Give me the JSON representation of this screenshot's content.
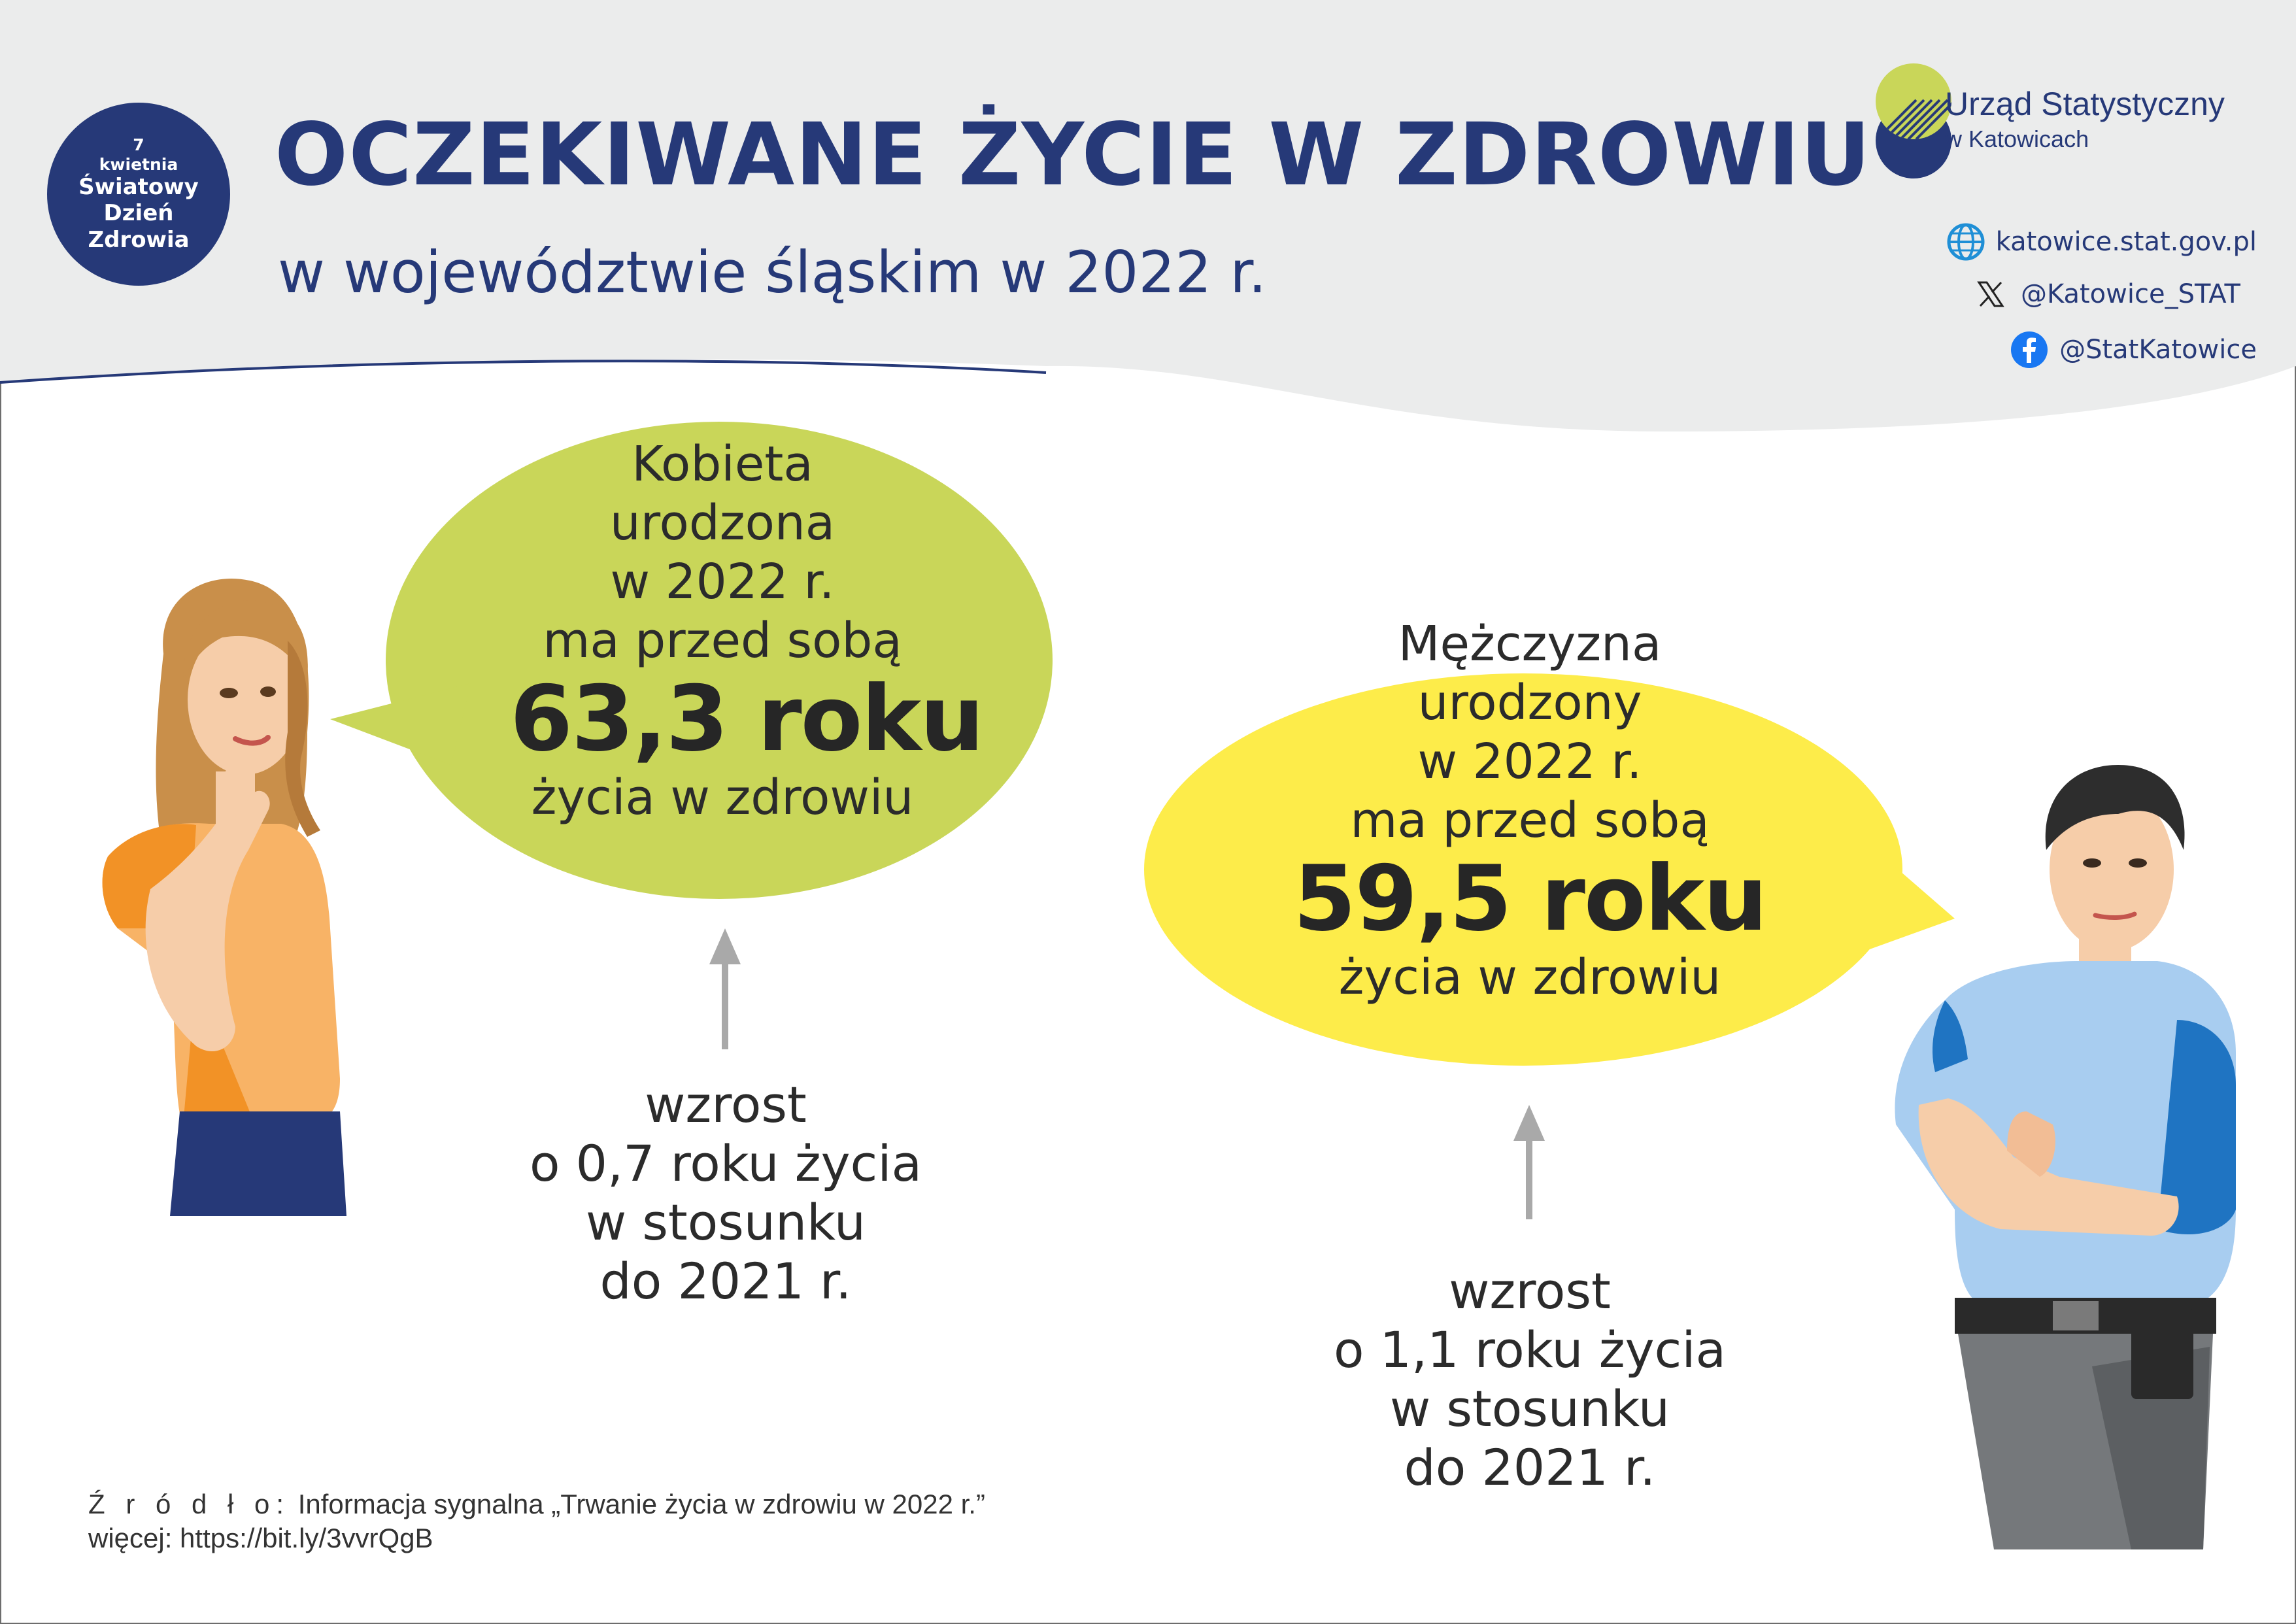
{
  "badge": {
    "line1": "7",
    "line2": "kwietnia",
    "line3": "Światowy",
    "line4": "Dzień",
    "line5": "Zdrowia"
  },
  "header": {
    "title": "OCZEKIWANE ŻYCIE W ZDROWIU",
    "subtitle": "w województwie śląskim w 2022 r."
  },
  "logo": {
    "name_line1": "Urząd Statystyczny",
    "name_line2": "w Katowicach"
  },
  "social": {
    "website": "katowice.stat.gov.pl",
    "x_handle": "@Katowice_STAT",
    "facebook": "@StatKatowice"
  },
  "woman": {
    "line1": "Kobieta",
    "line2": "urodzona",
    "line3": "w 2022 r.",
    "line4": "ma przed sobą",
    "value": "63,3 roku",
    "line5": "życia w zdrowiu",
    "increase": [
      "wzrost",
      "o 0,7 roku życia",
      "w stosunku",
      "do 2021 r."
    ]
  },
  "man": {
    "line1": "Mężczyzna",
    "line2": "urodzony",
    "line3": "w 2022 r.",
    "line4": "ma przed sobą",
    "value": "59,5 roku",
    "line5": "życia w zdrowiu",
    "increase": [
      "wzrost",
      "o 1,1 roku życia",
      "w stosunku",
      "do 2021 r."
    ]
  },
  "source": {
    "label": "Ź r ó d ł o:",
    "text": "Informacja sygnalna „Trwanie życia w zdrowiu w 2022 r.”",
    "more": "więcej: https://bit.ly/3vvrQgB"
  },
  "colors": {
    "navy": "#263978",
    "lime": "#c9d659",
    "yellow": "#fdec4a",
    "header_grey": "#ebecec"
  }
}
